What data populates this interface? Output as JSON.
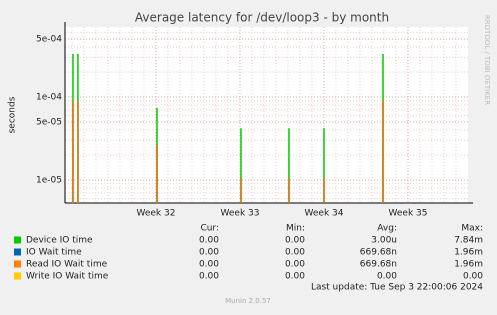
{
  "chart_data": {
    "type": "bar",
    "title": "Average latency for /dev/loop3 - by month",
    "ylabel": "seconds",
    "side_label": "RRDTOOL / TOBI OETIKER",
    "log_scale": true,
    "grid": true,
    "xlim": [
      30.917,
      35.714
    ],
    "xticks": [
      {
        "value": 32,
        "label": "Week 32"
      },
      {
        "value": 33,
        "label": "Week 33"
      },
      {
        "value": 34,
        "label": "Week 34"
      },
      {
        "value": 35,
        "label": "Week 35"
      }
    ],
    "ylim": [
      5.28e-06,
      0.000697
    ],
    "yticks": [
      {
        "value": 1e-05,
        "label": "1e-05"
      },
      {
        "value": 5e-05,
        "label": "5e-05"
      },
      {
        "value": 0.0001,
        "label": "1e-04"
      },
      {
        "value": 0.0005,
        "label": "5e-04"
      }
    ],
    "x": [
      31.012,
      31.071,
      32.012,
      33.012,
      33.583,
      34.0,
      34.702
    ],
    "series": [
      {
        "name": "Device IO time",
        "color": "#00cc00",
        "values": [
          0.00033,
          0.00033,
          7.4e-05,
          4.2e-05,
          4.2e-05,
          4.2e-05,
          0.00033
        ]
      },
      {
        "name": "IO Wait time",
        "color": "#0066b3",
        "values": [
          9e-05,
          9e-05,
          2.6e-05,
          1.05e-05,
          1.05e-05,
          1.05e-05,
          9e-05
        ]
      },
      {
        "name": "Read IO Wait time",
        "color": "#ff8000",
        "values": [
          9e-05,
          9e-05,
          2.6e-05,
          1.05e-05,
          1.05e-05,
          1.05e-05,
          9e-05
        ]
      },
      {
        "name": "Write IO Wait time",
        "color": "#ffcc00",
        "values": [
          null,
          null,
          null,
          null,
          null,
          null,
          null
        ]
      }
    ],
    "stats": {
      "headers": [
        "Cur:",
        "Min:",
        "Avg:",
        "Max:"
      ],
      "rows": [
        [
          "0.00",
          "0.00",
          "3.00u",
          "7.84m"
        ],
        [
          "0.00",
          "0.00",
          "669.68n",
          "1.96m"
        ],
        [
          "0.00",
          "0.00",
          "669.68n",
          "1.96m"
        ],
        [
          "0.00",
          "0.00",
          "0.00",
          "0.00"
        ]
      ]
    },
    "last_update": "Last update: Tue Sep  3 22:00:06 2024",
    "footer": "Munin 2.0.57"
  }
}
